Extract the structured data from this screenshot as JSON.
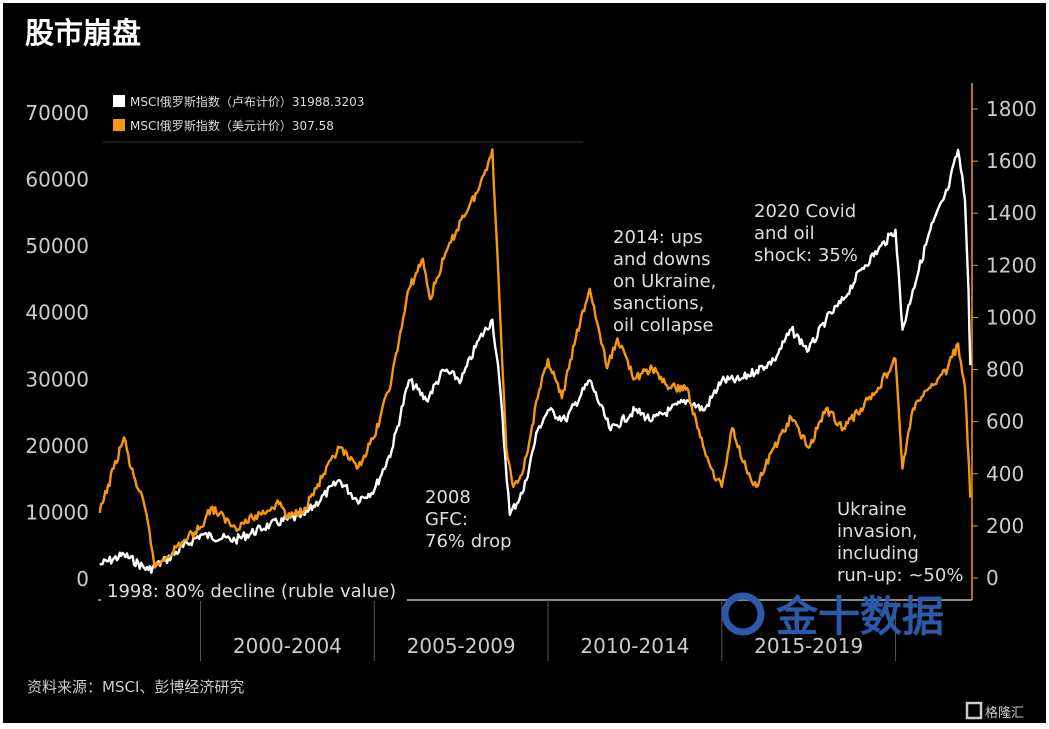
{
  "header": {
    "title": "股市崩盘"
  },
  "source": "资料来源：MSCI、彭博经济研究",
  "watermarks": {
    "jin10": "金十数据",
    "gelonghui": "格隆汇"
  },
  "colors": {
    "ruble": "#ffffff",
    "usd": "#f7960f",
    "background": "#000000",
    "watermark": "#2a5aa8"
  },
  "chart_data": {
    "type": "line",
    "title": "股市崩盘",
    "legend_placement": "top-left",
    "x_range": [
      1997.05,
      2022.2
    ],
    "x_tick_labels": [
      "2000-2004",
      "2005-2009",
      "2010-2014",
      "2015-2019"
    ],
    "x_boundaries": [
      2000,
      2005,
      2010,
      2015,
      2020
    ],
    "left_axis": {
      "range": [
        0,
        70000
      ],
      "ticks": [
        "0",
        "10000",
        "20000",
        "30000",
        "40000",
        "50000",
        "60000",
        "70000"
      ]
    },
    "right_axis": {
      "range": [
        0,
        1800
      ],
      "ticks": [
        "0",
        "200",
        "400",
        "600",
        "800",
        "1000",
        "1200",
        "1400",
        "1600",
        "1800"
      ]
    },
    "series": [
      {
        "name": "MSCI俄罗斯指数（卢布计价）31988.3203",
        "axis": "left",
        "color": "#ffffff",
        "x": [
          1997.1,
          1997.8,
          1998.5,
          1999,
          2000,
          2001,
          2002,
          2003,
          2004,
          2004.5,
          2005,
          2005.5,
          2006,
          2006.5,
          2007,
          2007.5,
          2008,
          2008.4,
          2008.6,
          2008.9,
          2009.3,
          2009.7,
          2010,
          2010.5,
          2011.2,
          2011.8,
          2012.5,
          2013,
          2013.5,
          2014,
          2014.5,
          2015,
          2015.5,
          2016,
          2016.5,
          2017,
          2017.5,
          2018,
          2018.5,
          2019,
          2019.5,
          2020,
          2020.2,
          2020.5,
          2021,
          2021.5,
          2021.8,
          2022.0,
          2022.1,
          2022.15
        ],
        "y": [
          2000,
          3500,
          1200,
          2700,
          6500,
          5700,
          8000,
          9500,
          14700,
          11700,
          13200,
          19200,
          29700,
          26700,
          31200,
          29700,
          35700,
          38800,
          29700,
          9500,
          13200,
          22200,
          25200,
          23700,
          29700,
          22200,
          25200,
          23700,
          25200,
          26700,
          25200,
          29700,
          29700,
          31200,
          32700,
          37300,
          34200,
          38800,
          41800,
          46300,
          49300,
          52300,
          37300,
          43300,
          52300,
          58300,
          64300,
          56800,
          43300,
          31988
        ]
      },
      {
        "name": "MSCI俄罗斯指数（美元计价）307.58",
        "axis": "right",
        "color": "#f7960f",
        "x": [
          1997.1,
          1997.5,
          1997.8,
          1998.0,
          1998.4,
          1998.7,
          1999.0,
          1999.5,
          2000.0,
          2000.3,
          2001.0,
          2001.5,
          2002.3,
          2002.5,
          2003.0,
          2003.5,
          2004.0,
          2004.5,
          2005.0,
          2005.5,
          2006.0,
          2006.4,
          2006.6,
          2007.0,
          2007.5,
          2008.0,
          2008.4,
          2008.6,
          2008.8,
          2009.0,
          2009.3,
          2009.7,
          2010.0,
          2010.4,
          2010.8,
          2011.2,
          2011.7,
          2012.0,
          2012.5,
          2013.0,
          2013.5,
          2014.0,
          2014.3,
          2014.7,
          2015.0,
          2015.3,
          2015.7,
          2016.0,
          2016.5,
          2017.0,
          2017.5,
          2018.0,
          2018.5,
          2019.0,
          2019.5,
          2020.0,
          2020.2,
          2020.5,
          2021.0,
          2021.5,
          2021.8,
          2022.0,
          2022.15
        ],
        "y": [
          250,
          420,
          540,
          420,
          270,
          40,
          80,
          140,
          195,
          270,
          195,
          230,
          290,
          230,
          270,
          385,
          500,
          420,
          540,
          765,
          1110,
          1225,
          1070,
          1225,
          1375,
          1490,
          1645,
          1070,
          500,
          350,
          420,
          690,
          840,
          690,
          920,
          1110,
          805,
          920,
          765,
          805,
          730,
          730,
          575,
          420,
          350,
          575,
          420,
          350,
          500,
          615,
          500,
          650,
          575,
          650,
          730,
          840,
          420,
          650,
          730,
          805,
          900,
          730,
          308
        ]
      }
    ],
    "annotations": [
      {
        "id": "a1998",
        "lines": [
          "1998: 80% decline (ruble value)"
        ]
      },
      {
        "id": "a2008",
        "lines": [
          "2008",
          "GFC:",
          "76% drop"
        ]
      },
      {
        "id": "a2014",
        "lines": [
          "2014: ups",
          "and downs",
          "on Ukraine,",
          "sanctions,",
          "oil collapse"
        ]
      },
      {
        "id": "a2020",
        "lines": [
          "2020 Covid",
          "and oil",
          "shock: 35%"
        ]
      },
      {
        "id": "a2022",
        "lines": [
          "Ukraine",
          "invasion,",
          "including",
          "run-up: ~50%"
        ]
      }
    ]
  }
}
